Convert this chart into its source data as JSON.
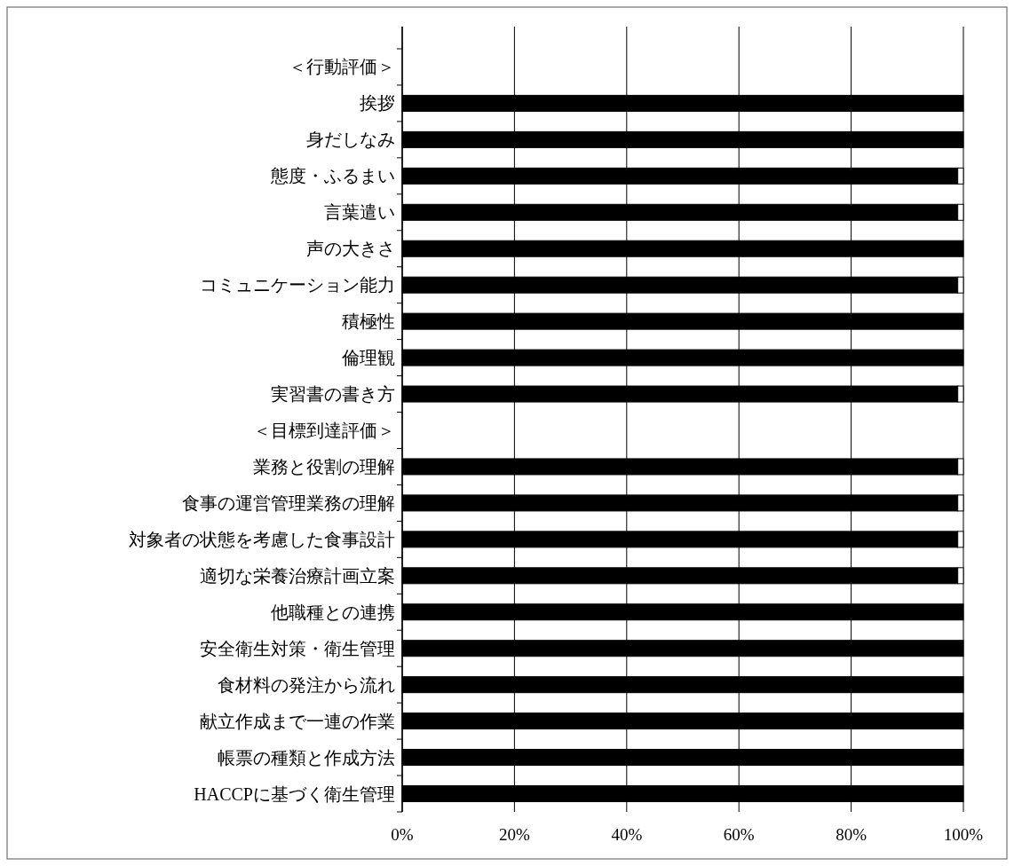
{
  "chart_data": {
    "type": "bar",
    "orientation": "horizontal",
    "stacked": true,
    "grid": "x",
    "categories": [
      "＜行動評価＞",
      "挨拶",
      "身だしなみ",
      "態度・ふるまい",
      "言葉遣い",
      "声の大きさ",
      "コミュニケーション能力",
      "積極性",
      "倫理観",
      "実習書の書き方",
      "＜目標到達評価＞",
      "業務と役割の理解",
      "食事の運営管理業務の理解",
      "対象者の状態を考慮した食事設計",
      "適切な栄養治療計画立案",
      "他職種との連携",
      "安全衛生対策・衛生管理",
      "食材料の発注から流れ",
      "献立作成まで一連の作業",
      "帳票の種類と作成方法",
      "HACCPに基づく衛生管理"
    ],
    "series": [
      {
        "color": "#000000",
        "values": [
          null,
          100,
          100,
          99,
          99,
          100,
          99,
          100,
          100,
          99,
          null,
          99,
          99,
          99,
          99,
          100,
          100,
          100,
          100,
          100,
          100
        ]
      },
      {
        "color": "#ffffff",
        "values": [
          null,
          null,
          null,
          1,
          1,
          null,
          1,
          null,
          null,
          1,
          null,
          1,
          1,
          1,
          1,
          null,
          null,
          null,
          null,
          null,
          null
        ]
      }
    ],
    "xlim": [
      0,
      100
    ],
    "xticks": [
      {
        "value": 0,
        "label": "0%"
      },
      {
        "value": 20,
        "label": "20%"
      },
      {
        "value": 40,
        "label": "40%"
      },
      {
        "value": 60,
        "label": "60%"
      },
      {
        "value": 80,
        "label": "80%"
      },
      {
        "value": 100,
        "label": "100%"
      }
    ]
  }
}
